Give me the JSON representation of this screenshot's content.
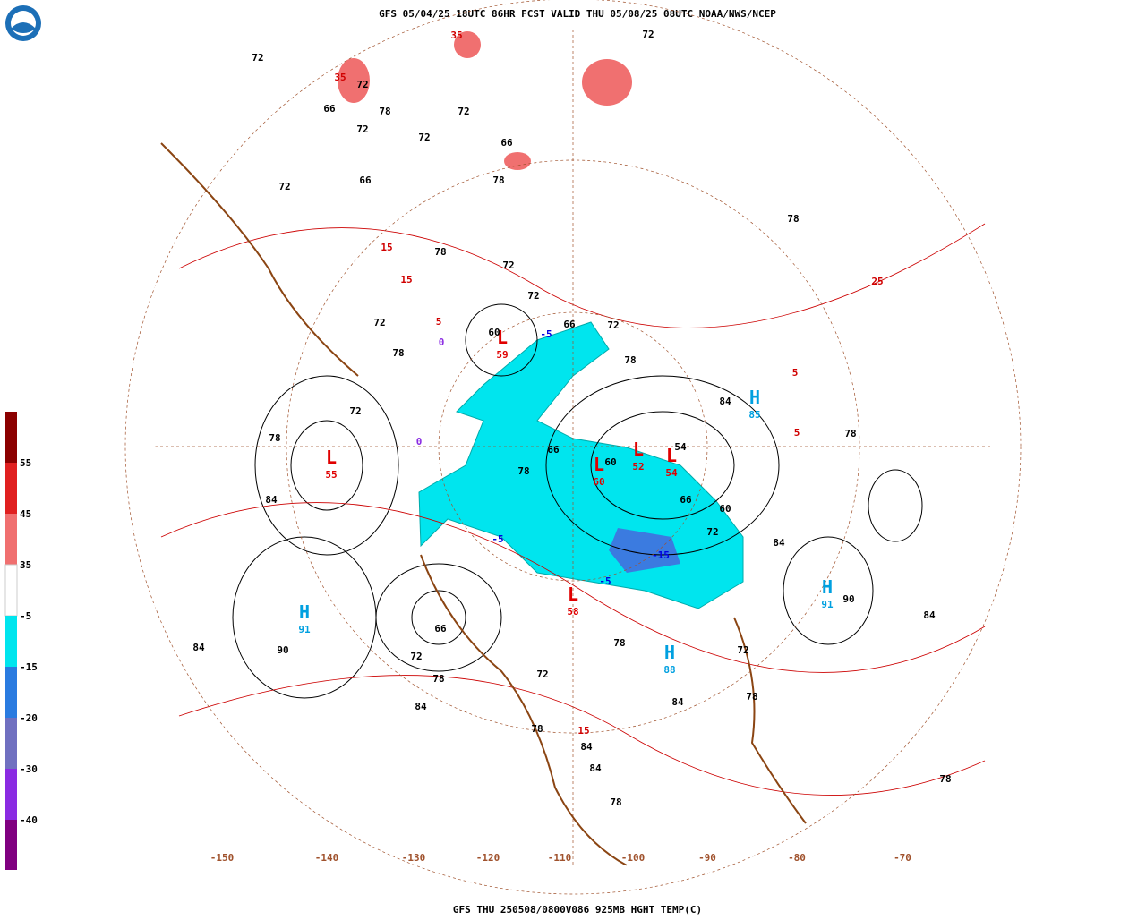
{
  "header": {
    "title": "GFS 05/04/25 18UTC 86HR FCST VALID THU 05/08/25 08UTC NOAA/NWS/NCEP"
  },
  "footer": {
    "caption": "GFS THU 250508/0800V086 925MB HGHT TEMP(C)"
  },
  "legend": {
    "labels": [
      "55",
      "45",
      "35",
      "-5",
      "-15",
      "-20",
      "-30",
      "-40"
    ]
  },
  "longitudes": [
    "-150",
    "-140",
    "-130",
    "-120",
    "-110",
    "-100",
    "-90",
    "-80",
    "-70"
  ],
  "centers": [
    {
      "letter": "L",
      "value": 55
    },
    {
      "letter": "H",
      "value": 91
    },
    {
      "letter": "L",
      "value": 59
    },
    {
      "letter": "H",
      "value": 85
    },
    {
      "letter": "L",
      "value": 52
    },
    {
      "letter": "L",
      "value": 54
    },
    {
      "letter": "L",
      "value": 60
    },
    {
      "letter": "L",
      "value": 58
    },
    {
      "letter": "H",
      "value": 91
    },
    {
      "letter": "H",
      "value": 88
    }
  ],
  "height_labels": [
    72,
    72,
    78,
    72,
    66,
    72,
    72,
    78,
    66,
    72,
    78,
    72,
    72,
    78,
    72,
    78,
    84,
    78,
    72,
    78,
    84,
    84,
    84,
    90,
    84,
    66,
    72,
    78,
    84,
    78,
    90,
    72,
    78,
    84,
    78,
    78,
    78,
    66,
    60,
    66,
    72,
    78,
    60,
    54,
    60,
    72,
    84,
    72,
    66,
    84,
    78,
    72,
    66
  ],
  "temp_labels": [
    {
      "text": "35",
      "color": "#d00000"
    },
    {
      "text": "35",
      "color": "#d00000"
    },
    {
      "text": "15",
      "color": "#d00000"
    },
    {
      "text": "15",
      "color": "#d00000"
    },
    {
      "text": "5",
      "color": "#d00000"
    },
    {
      "text": "0",
      "color": "#8a2be2"
    },
    {
      "text": "-5",
      "color": "#0000e0"
    },
    {
      "text": "-5",
      "color": "#0000e0"
    },
    {
      "text": "-15",
      "color": "#0000e0"
    },
    {
      "text": "5",
      "color": "#d00000"
    },
    {
      "text": "25",
      "color": "#d00000"
    },
    {
      "text": "5",
      "color": "#d00000"
    },
    {
      "text": "15",
      "color": "#d00000"
    },
    {
      "text": "0",
      "color": "#8a2be2"
    },
    {
      "text": "-5",
      "color": "#0000e0"
    }
  ]
}
